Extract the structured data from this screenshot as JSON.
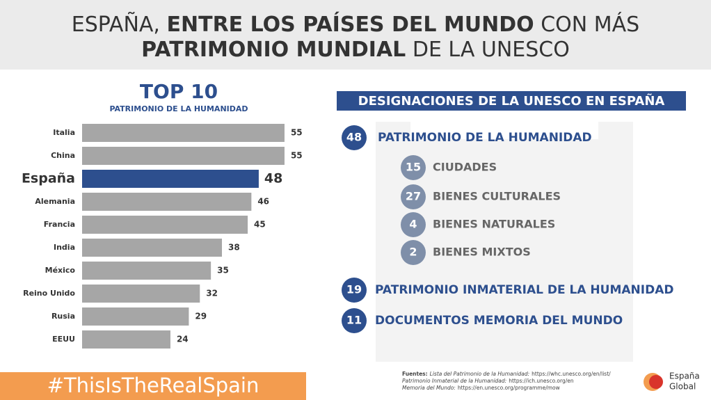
{
  "header": {
    "line1": [
      "ESPAÑA,",
      "ENTRE LOS PAÍSES DEL MUNDO",
      "CON MÁS"
    ],
    "line2": [
      "PATRIMONIO MUNDIAL",
      "DE LA UNESCO"
    ]
  },
  "chart_data": {
    "type": "bar",
    "orientation": "horizontal",
    "title": "TOP 10",
    "subtitle": "PATRIMONIO DE LA HUMANIDAD",
    "categories": [
      "Italia",
      "China",
      "España",
      "Alemania",
      "Francia",
      "India",
      "México",
      "Reino Unido",
      "Rusia",
      "EEUU"
    ],
    "values": [
      55,
      55,
      48,
      46,
      45,
      38,
      35,
      32,
      29,
      24
    ],
    "color": "#a6a6a6",
    "colors": [
      "#a6a6a6",
      "#a6a6a6",
      "#2d4f8e",
      "#a6a6a6",
      "#a6a6a6",
      "#a6a6a6",
      "#a6a6a6",
      "#a6a6a6",
      "#a6a6a6",
      "#a6a6a6"
    ]
  },
  "designations": {
    "heading": "DESIGNACIONES DE LA UNESCO EN ESPAÑA",
    "items": [
      {
        "value": "48",
        "label": "PATRIMONIO DE LA HUMANIDAD",
        "sub": [
          {
            "value": "15",
            "label": "CIUDADES"
          },
          {
            "value": "27",
            "label": "BIENES CULTURALES"
          },
          {
            "value": "4",
            "label": "BIENES NATURALES"
          },
          {
            "value": "2",
            "label": "BIENES MIXTOS"
          }
        ]
      },
      {
        "value": "19",
        "label": "PATRIMONIO INMATERIAL DE LA HUMANIDAD",
        "sub": []
      },
      {
        "value": "11",
        "label": "DOCUMENTOS MEMORIA DEL MUNDO",
        "sub": []
      }
    ]
  },
  "footer": {
    "hashtag": "#ThisIsTheRealSpain",
    "sources": [
      {
        "prefix": "Fuentes:",
        "name": "Lista del Patrimonio de la Humanidad:",
        "url": "https://whc.unesco.org/en/list/"
      },
      {
        "name": "Patrimonio Inmaterial de la Humanidad:",
        "url": "https://ich.unesco.org/en"
      },
      {
        "name": "Memoria del Mundo:",
        "url": "https://en.unesco.org/programme/mow"
      }
    ],
    "logo": [
      "España",
      "Global"
    ]
  }
}
